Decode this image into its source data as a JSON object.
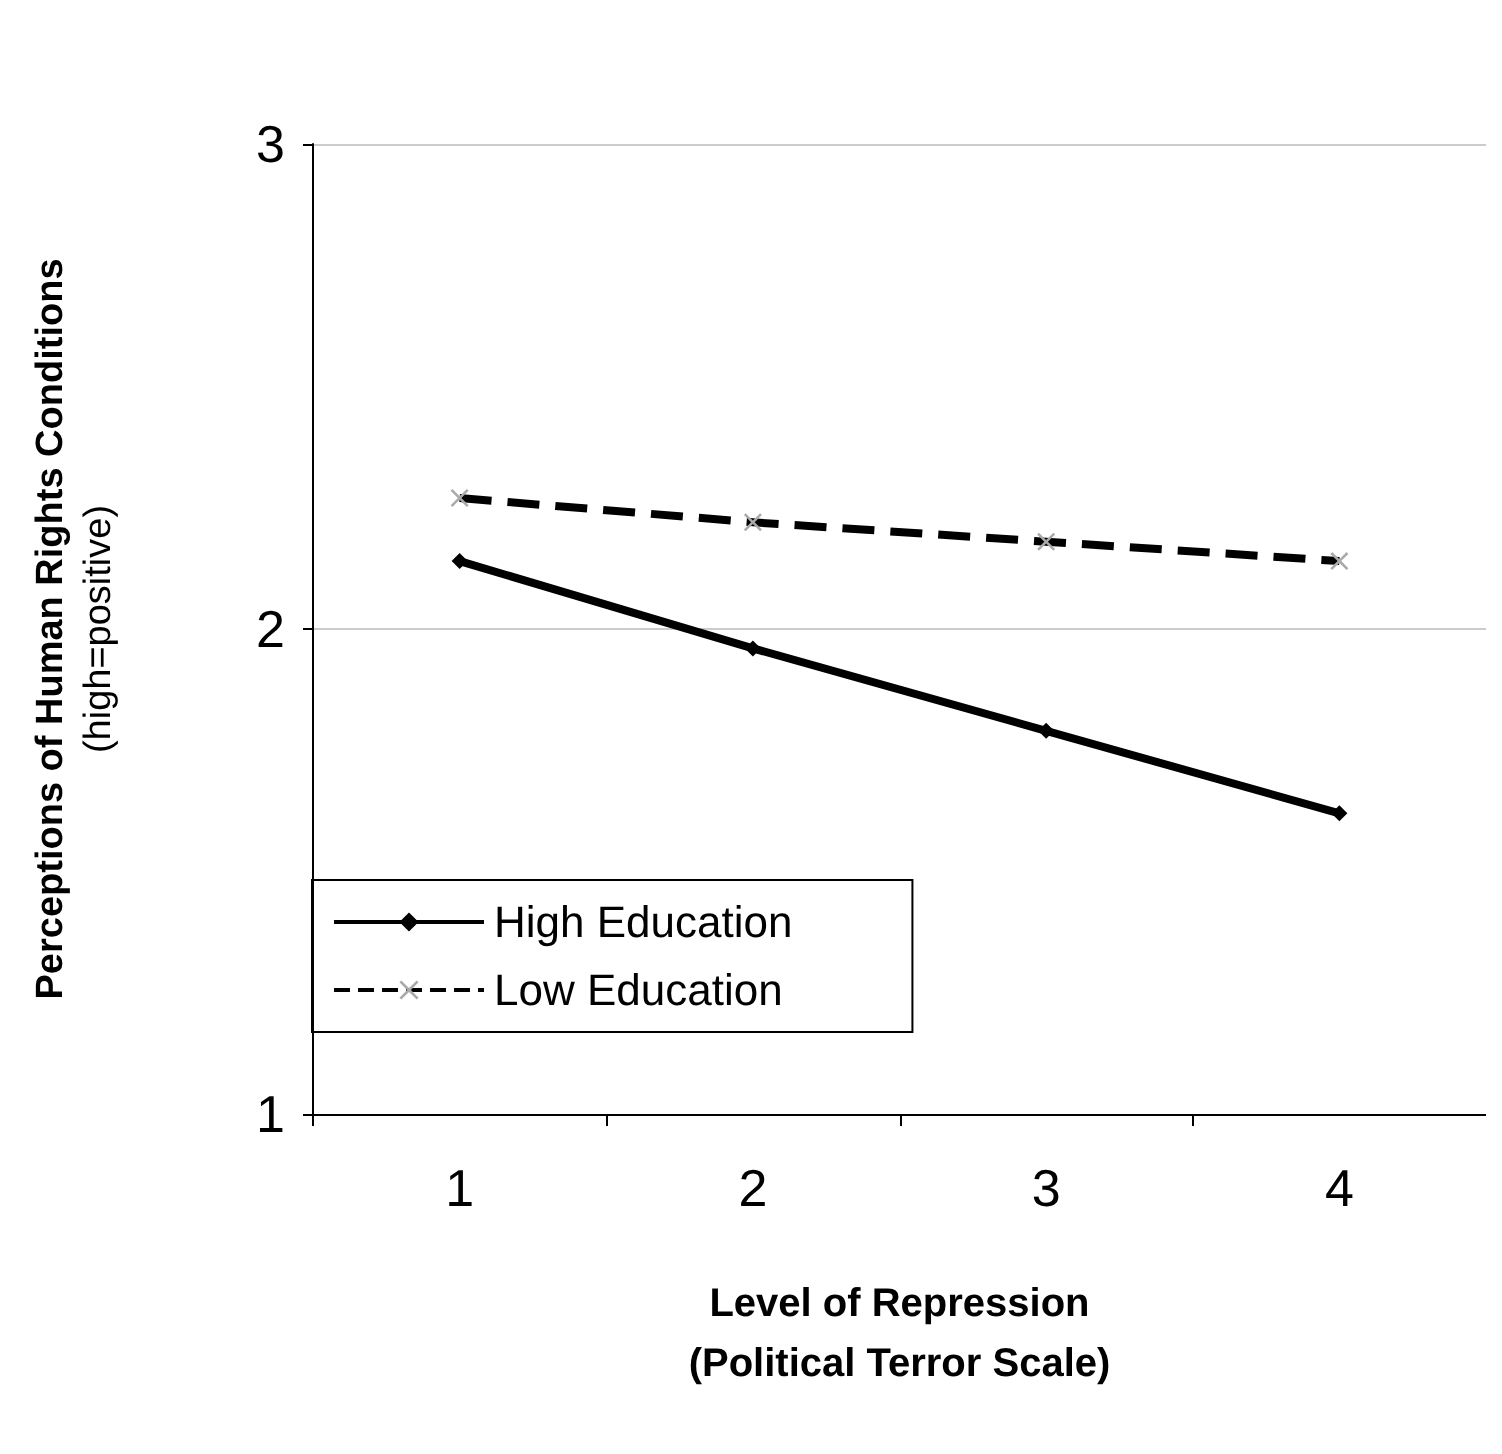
{
  "chart_data": {
    "type": "line",
    "xlabel": "Level of Repression\n(Political Terror Scale)",
    "ylabel": "Perceptions of Human Rights Conditions\n(high=positive)",
    "categories": [
      "1",
      "2",
      "3",
      "4"
    ],
    "series": [
      {
        "name": "High Education",
        "color": "#000000",
        "values": [
          2.14,
          1.96,
          1.79,
          1.62
        ],
        "line_style": "solid",
        "marker": "diamond"
      },
      {
        "name": "Low Education",
        "color": "#000000",
        "values": [
          2.27,
          2.22,
          2.18,
          2.14
        ],
        "line_style": "dashed",
        "marker": "cross"
      }
    ],
    "ylim": [
      1,
      3
    ],
    "yticks": [
      1,
      2,
      3
    ],
    "grid": "y",
    "legend": "bottom left"
  }
}
